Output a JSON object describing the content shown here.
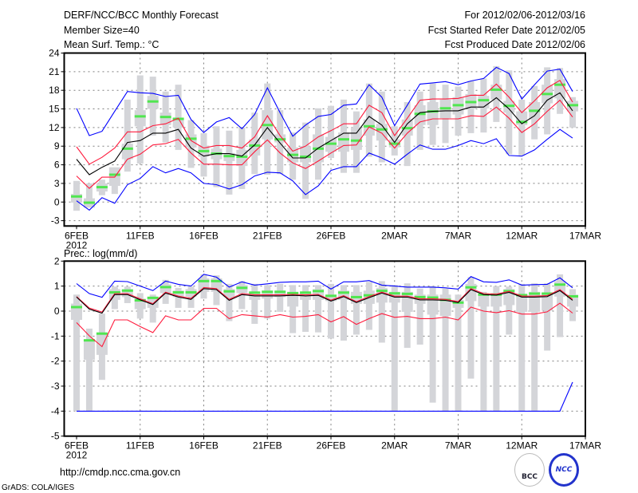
{
  "header": {
    "title": "DERF/NCC/BCC Monthly Forecast",
    "member_size": "Member Size=40",
    "variable": "Mean Surf. Temp.: °C",
    "period": "For 2012/02/06-2012/03/16",
    "start_date": "Fcst Started Refer Date 2012/02/05",
    "produced_date": "Fcst Produced Date 2012/02/06"
  },
  "footer": {
    "url": "http://cmdp.ncc.cma.gov.cn",
    "grads": "GrADS: COLA/IGES",
    "logo_bcc": "BCC",
    "logo_ncc": "NCC"
  },
  "colors": {
    "ensemble_range": "#0000ff",
    "spread": "#ff1a3c",
    "mean": "#000000",
    "median": "#50e650",
    "box": "#d4d5d9",
    "grid": "#808080"
  },
  "chart_data": [
    {
      "type": "line",
      "title": "Mean Surf. Temp.: °C",
      "ylabel": "°C",
      "ylim": [
        -3.86,
        24
      ],
      "yticks": [
        24,
        21,
        18,
        15,
        12,
        9,
        6,
        3,
        0,
        -3
      ],
      "ytick_labels": [
        "24",
        "21",
        "18",
        "15",
        "12",
        "9",
        "6",
        "3",
        "0",
        "-3"
      ],
      "xtick_labels": [
        "6FEB",
        "11FEB",
        "16FEB",
        "21FEB",
        "26FEB",
        "2MAR",
        "7MAR",
        "12MAR",
        "17MAR"
      ],
      "xtick_year": "2012",
      "x_start": "2012-02-06",
      "n_days": 40,
      "grid": true,
      "series": [
        {
          "name": "upper_bound",
          "color": "blue",
          "values": [
            15.1,
            10.7,
            11.4,
            14.6,
            17.8,
            17.6,
            17.5,
            17.0,
            17.2,
            13.3,
            11.2,
            12.9,
            13.6,
            11.8,
            14.1,
            18.4,
            14.4,
            10.6,
            12.4,
            13.8,
            14.1,
            15.6,
            15.8,
            18.9,
            16.9,
            12.3,
            15.6,
            19.0,
            19.2,
            19.4,
            18.9,
            19.5,
            19.9,
            21.7,
            20.7,
            16.6,
            18.9,
            21.1,
            21.4,
            17.8
          ]
        },
        {
          "name": "upper_spread",
          "color": "red",
          "values": [
            8.9,
            6.1,
            7.2,
            8.7,
            11.3,
            11.3,
            12.3,
            12.6,
            13.5,
            9.9,
            8.7,
            9.1,
            9.1,
            8.7,
            10.5,
            13.9,
            10.7,
            8.2,
            9.0,
            10.5,
            11.5,
            12.6,
            12.6,
            15.6,
            14.4,
            10.7,
            13.5,
            16.4,
            16.6,
            16.6,
            16.7,
            17.2,
            17.2,
            19.0,
            16.9,
            14.4,
            16.3,
            18.4,
            19.6,
            16.1
          ]
        },
        {
          "name": "ensemble_mean",
          "color": "black",
          "values": [
            6.9,
            4.4,
            5.6,
            6.6,
            9.6,
            9.9,
            11.1,
            11.1,
            11.7,
            8.7,
            7.4,
            7.8,
            7.8,
            7.4,
            9.2,
            12.0,
            9.5,
            7.1,
            7.1,
            8.7,
            9.9,
            11.1,
            11.1,
            13.8,
            12.4,
            9.6,
            12.6,
            14.4,
            14.6,
            14.7,
            14.7,
            15.3,
            15.3,
            16.8,
            15.0,
            12.6,
            13.9,
            16.4,
            17.6,
            14.7
          ]
        },
        {
          "name": "lower_spread",
          "color": "red",
          "values": [
            4.2,
            2.2,
            4.0,
            4.0,
            6.9,
            7.7,
            9.2,
            9.4,
            10.1,
            7.9,
            6.1,
            6.1,
            6.0,
            6.0,
            8.1,
            10.0,
            7.9,
            6.3,
            5.4,
            6.6,
            7.9,
            9.1,
            9.2,
            12.1,
            11.1,
            8.7,
            11.1,
            12.9,
            13.4,
            13.4,
            13.4,
            13.9,
            13.8,
            15.3,
            13.5,
            11.2,
            12.6,
            14.6,
            16.4,
            13.7
          ]
        },
        {
          "name": "lower_bound",
          "color": "blue",
          "values": [
            0.2,
            -1.3,
            0.7,
            -0.2,
            2.8,
            3.8,
            5.7,
            4.7,
            5.4,
            4.7,
            3.0,
            2.8,
            2.1,
            2.8,
            4.2,
            4.8,
            4.7,
            3.4,
            1.2,
            2.6,
            5.1,
            5.7,
            5.7,
            7.9,
            7.1,
            6.1,
            7.7,
            9.2,
            8.5,
            8.5,
            9.1,
            9.9,
            9.4,
            10.2,
            7.5,
            7.4,
            8.4,
            10.1,
            11.7,
            10.3
          ]
        }
      ],
      "median": [
        0.9,
        -0.1,
        2.4,
        4.4,
        8.6,
        13.8,
        16.2,
        13.7,
        13.4,
        10.2,
        8.2,
        7.8,
        7.4,
        7.3,
        9.1,
        12.4,
        10.1,
        7.6,
        7.3,
        8.6,
        9.4,
        10.1,
        9.9,
        12.2,
        11.7,
        9.4,
        11.9,
        14.2,
        14.6,
        15.1,
        15.6,
        16.1,
        16.4,
        18.1,
        15.5,
        12.9,
        14.7,
        17.4,
        18.9,
        15.6
      ],
      "box": {
        "max": [
          3.4,
          3.0,
          3.6,
          5.4,
          16.5,
          20.4,
          20.2,
          17.8,
          18.9,
          13.2,
          11.1,
          12.2,
          11.5,
          12.0,
          14.4,
          19.1,
          14.8,
          11.2,
          12.8,
          15.1,
          15.5,
          16.5,
          14.6,
          19.1,
          17.8,
          12.2,
          16.1,
          17.8,
          19.1,
          18.9,
          18.6,
          19.5,
          19.9,
          21.9,
          21.2,
          16.5,
          18.7,
          21.7,
          21.6,
          16.9
        ],
        "min": [
          -1.4,
          -0.1,
          1.1,
          1.3,
          4.9,
          6.2,
          10.7,
          9.6,
          8.4,
          5.5,
          4.1,
          2.4,
          1.2,
          2.1,
          4.5,
          4.4,
          4.5,
          3.6,
          0.5,
          3.6,
          7.1,
          4.7,
          4.7,
          7.3,
          6.4,
          7.5,
          5.8,
          8.4,
          9.2,
          9.5,
          10.7,
          11.1,
          11.2,
          12.9,
          7.7,
          7.5,
          10.1,
          10.9,
          14.2,
          12.0
        ],
        "q_hi": [
          1.3,
          0.6,
          3.0,
          5.6,
          9.4,
          14.8,
          17.1,
          14.4,
          13.5,
          10.9,
          9.1,
          8.6,
          7.9,
          8.4,
          10.1,
          14.8,
          10.9,
          8.8,
          9.0,
          10.9,
          10.5,
          11.2,
          12.0,
          13.3,
          12.6,
          10.1,
          13.3,
          15.6,
          16.1,
          16.5,
          16.9,
          17.4,
          17.1,
          18.9,
          16.3,
          14.6,
          16.1,
          18.9,
          19.8,
          16.3
        ],
        "q_lo": [
          -0.1,
          -0.9,
          1.7,
          2.6,
          6.9,
          12.2,
          15.0,
          12.4,
          12.0,
          8.8,
          7.3,
          6.9,
          6.6,
          5.8,
          7.5,
          10.1,
          9.6,
          6.4,
          6.4,
          6.4,
          8.1,
          8.1,
          8.4,
          10.7,
          9.9,
          8.8,
          10.7,
          12.4,
          12.4,
          13.5,
          14.1,
          15.0,
          15.1,
          16.5,
          14.4,
          12.4,
          13.3,
          15.9,
          16.7,
          14.6
        ]
      }
    },
    {
      "type": "line",
      "title": "Prec.: log(mm/d)",
      "ylabel": "log(mm/d)",
      "ylim": [
        -5,
        2
      ],
      "yticks": [
        2,
        1,
        0,
        -1,
        -2,
        -3,
        -4,
        -5
      ],
      "ytick_labels": [
        "2",
        "1",
        "0",
        "-1",
        "-2",
        "-3",
        "-4",
        "-5"
      ],
      "xtick_labels": [
        "6FEB",
        "11FEB",
        "16FEB",
        "21FEB",
        "26FEB",
        "2MAR",
        "7MAR",
        "12MAR",
        "17MAR"
      ],
      "xtick_year": "2012",
      "x_start": "2012-02-06",
      "n_days": 40,
      "grid": true,
      "series": [
        {
          "name": "upper_bound",
          "color": "blue",
          "values": [
            1.1,
            0.7,
            0.55,
            1.2,
            1.18,
            1.0,
            0.82,
            1.2,
            1.07,
            1.0,
            1.47,
            1.36,
            0.96,
            1.17,
            1.04,
            1.09,
            1.15,
            1.17,
            1.17,
            1.2,
            0.88,
            1.17,
            1.17,
            1.22,
            1.04,
            1.0,
            0.96,
            0.96,
            0.96,
            0.93,
            0.88,
            1.38,
            1.17,
            1.15,
            1.25,
            1.04,
            1.06,
            1.07,
            1.33,
            0.93
          ]
        },
        {
          "name": "upper_spread",
          "color": "red",
          "values": [
            0.58,
            0.12,
            -0.04,
            0.7,
            0.7,
            0.49,
            0.3,
            0.76,
            0.6,
            0.51,
            0.94,
            0.9,
            0.47,
            0.7,
            0.65,
            0.65,
            0.65,
            0.67,
            0.65,
            0.67,
            0.44,
            0.62,
            0.38,
            0.58,
            0.76,
            0.6,
            0.6,
            0.49,
            0.49,
            0.47,
            0.38,
            0.9,
            0.7,
            0.68,
            0.79,
            0.6,
            0.6,
            0.62,
            0.86,
            0.47
          ]
        },
        {
          "name": "ensemble_mean",
          "color": "black",
          "values": [
            0.56,
            0.08,
            -0.08,
            0.66,
            0.66,
            0.45,
            0.26,
            0.72,
            0.56,
            0.47,
            0.9,
            0.86,
            0.43,
            0.66,
            0.61,
            0.61,
            0.61,
            0.63,
            0.61,
            0.63,
            0.4,
            0.58,
            0.34,
            0.54,
            0.72,
            0.56,
            0.56,
            0.45,
            0.45,
            0.43,
            0.34,
            0.86,
            0.66,
            0.64,
            0.75,
            0.56,
            0.56,
            0.58,
            0.82,
            0.43
          ]
        },
        {
          "name": "lower_spread",
          "color": "red",
          "values": [
            -0.46,
            -0.99,
            -1.42,
            -0.35,
            -0.35,
            -0.62,
            -0.86,
            -0.19,
            -0.35,
            -0.35,
            0.11,
            0.11,
            -0.3,
            -0.14,
            -0.19,
            -0.24,
            -0.14,
            -0.24,
            -0.21,
            -0.14,
            -0.43,
            -0.22,
            -0.53,
            -0.3,
            -0.1,
            -0.25,
            -0.21,
            -0.3,
            -0.3,
            -0.24,
            -0.35,
            0.16,
            0.0,
            -0.06,
            0.02,
            -0.12,
            -0.12,
            -0.03,
            0.32,
            -0.08
          ]
        },
        {
          "name": "lower_bound",
          "color": "blue",
          "values": [
            -4,
            -4,
            -4,
            -4,
            -4,
            -4,
            -4,
            -4,
            -4,
            -4,
            -4,
            -4,
            -4,
            -4,
            -4,
            -4,
            -4,
            -4,
            -4,
            -4,
            -4,
            -4,
            -4,
            -4,
            -4,
            -4,
            -4,
            -4,
            -4,
            -4,
            -4,
            -4,
            -4,
            -4,
            -4,
            -4,
            -4,
            -4,
            -4,
            -2.84
          ]
        }
      ],
      "median": [
        0.16,
        -1.17,
        -0.9,
        0.75,
        0.82,
        0.43,
        0.53,
        0.96,
        0.75,
        0.75,
        1.2,
        1.2,
        0.79,
        0.93,
        0.74,
        0.77,
        0.77,
        0.72,
        0.74,
        0.8,
        0.61,
        0.74,
        0.56,
        0.63,
        0.81,
        0.71,
        0.69,
        0.56,
        0.54,
        0.45,
        0.34,
        0.95,
        0.66,
        0.66,
        0.8,
        0.64,
        0.7,
        0.7,
        1.06,
        0.59
      ],
      "box": {
        "max": [
          0.66,
          -0.7,
          -0.1,
          0.98,
          0.98,
          0.72,
          0.66,
          1.25,
          0.93,
          0.98,
          1.47,
          1.43,
          1.09,
          1.2,
          1.09,
          1.04,
          1.09,
          1.04,
          1.04,
          1.04,
          1.09,
          1.04,
          1.04,
          1.17,
          1.2,
          1.04,
          1.11,
          0.9,
          1.0,
          0.9,
          0.66,
          1.36,
          0.77,
          1.0,
          0.98,
          1.09,
          1.11,
          1.11,
          1.47,
          0.88
        ],
        "min": [
          -4,
          -4,
          -2.75,
          0.08,
          0.32,
          -0.3,
          -0.46,
          0.29,
          0.13,
          0.13,
          0.5,
          0.24,
          -0.4,
          0.08,
          -0.51,
          -0.3,
          -0.03,
          -0.88,
          -0.83,
          -0.85,
          -1.1,
          -1.18,
          -0.94,
          -0.75,
          -1.26,
          -4,
          -1.47,
          -1.34,
          -3.66,
          -4,
          -4,
          -2.7,
          -4,
          -4,
          -0.94,
          -4,
          -4,
          -1.58,
          -1.04,
          -0.4
        ],
        "q_hi": [
          0.3,
          -1.15,
          -0.9,
          0.88,
          0.88,
          0.5,
          0.56,
          1.07,
          0.82,
          0.88,
          1.31,
          1.31,
          0.88,
          1.04,
          0.77,
          0.82,
          0.82,
          0.77,
          0.77,
          0.88,
          0.66,
          0.82,
          0.77,
          0.82,
          0.93,
          0.77,
          0.77,
          0.66,
          0.66,
          0.66,
          0.45,
          1.09,
          0.66,
          0.72,
          0.88,
          0.66,
          0.77,
          0.72,
          1.2,
          0.66
        ],
        "q_lo": [
          -0.35,
          -1.95,
          -1.75,
          0.45,
          0.56,
          0.08,
          0.13,
          0.72,
          0.56,
          0.58,
          0.77,
          0.77,
          0.56,
          0.72,
          0.45,
          0.5,
          0.56,
          0.18,
          0.45,
          0.45,
          0.4,
          0.45,
          0.29,
          0.29,
          0.34,
          0.34,
          -0.03,
          0.29,
          -0.14,
          -0.19,
          0.13,
          0.4,
          0.18,
          0.18,
          0.24,
          -0.03,
          -0.03,
          0.02,
          0.58,
          0.18
        ]
      }
    }
  ]
}
